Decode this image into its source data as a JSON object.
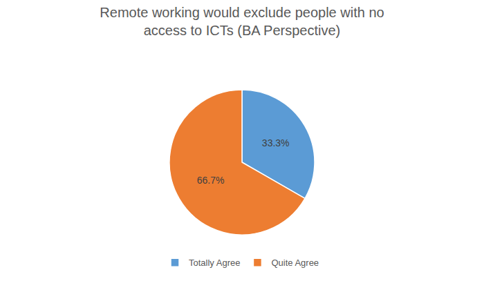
{
  "chart_data": {
    "type": "pie",
    "title": "Remote working would exclude people with no access to ICTs (BA Perspective)",
    "categories": [
      "Totally Agree",
      "Quite Agree"
    ],
    "values": [
      33.3,
      66.7
    ],
    "value_labels": [
      "33.3%",
      "66.7%"
    ],
    "colors": [
      "#5b9bd5",
      "#ed7d31"
    ],
    "data_labels": true,
    "legend": "bottom"
  }
}
